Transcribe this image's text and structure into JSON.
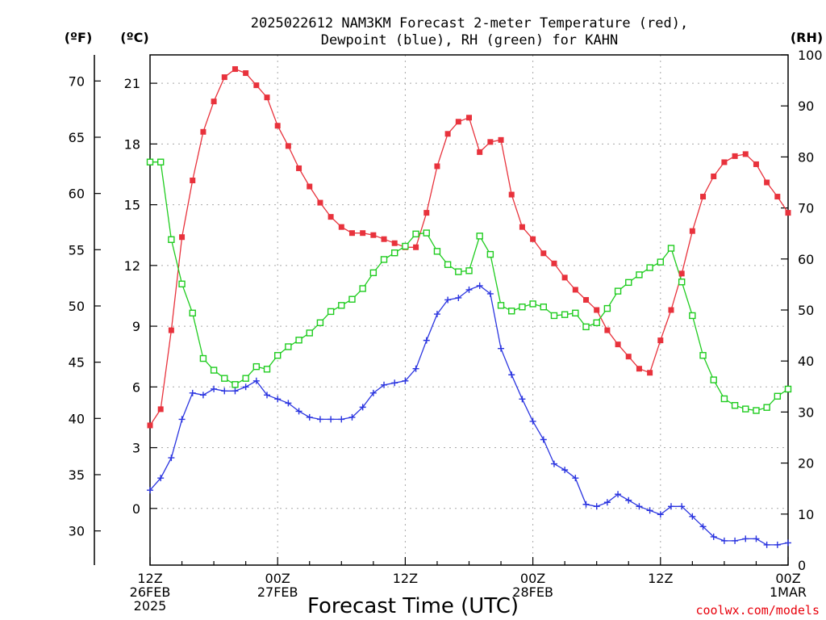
{
  "title_line1": "2025022612 NAM3KM Forecast 2-meter Temperature (red),",
  "title_line2": "Dewpoint (blue), RH (green) for KAHN",
  "units": {
    "f": "(ºF)",
    "c": "(ºC)",
    "rh": "(RH)"
  },
  "credit": "coolwx.com/models",
  "chart_data": {
    "type": "line",
    "title": "2025022612 NAM3KM Forecast 2-meter Temperature (red), Dewpoint (blue), RH (green) for KAHN",
    "xlabel": "Forecast Time (UTC)",
    "x": [
      0,
      1,
      2,
      3,
      4,
      5,
      6,
      7,
      8,
      9,
      10,
      11,
      12,
      13,
      14,
      15,
      16,
      17,
      18,
      19,
      20,
      21,
      22,
      23,
      24,
      25,
      26,
      27,
      28,
      29,
      30,
      31,
      32,
      33,
      34,
      35,
      36,
      37,
      38,
      39,
      40,
      41,
      42,
      43,
      44,
      45,
      46,
      47,
      48,
      49,
      50,
      51,
      52,
      53,
      54,
      55,
      56,
      57,
      58,
      59,
      60
    ],
    "x_ticks": [
      {
        "hour": 0,
        "label": [
          "12Z",
          "26FEB",
          "2025"
        ]
      },
      {
        "hour": 12,
        "label": [
          "00Z",
          "27FEB"
        ]
      },
      {
        "hour": 24,
        "label": [
          "12Z"
        ]
      },
      {
        "hour": 36,
        "label": [
          "00Z",
          "28FEB"
        ]
      },
      {
        "hour": 48,
        "label": [
          "12Z"
        ]
      },
      {
        "hour": 60,
        "label": [
          "00Z",
          "1MAR"
        ]
      }
    ],
    "left_axis_c": {
      "label": "(ºC)",
      "ticks": [
        0,
        3,
        6,
        9,
        12,
        15,
        18,
        21
      ],
      "range": [
        -2.8,
        22.4
      ]
    },
    "left_axis_f": {
      "label": "(ºF)",
      "ticks": [
        30,
        35,
        40,
        45,
        50,
        55,
        60,
        65,
        70
      ]
    },
    "right_axis_rh": {
      "label": "(RH)",
      "ticks": [
        0,
        10,
        20,
        30,
        40,
        50,
        60,
        70,
        80,
        90,
        100
      ],
      "range": [
        0,
        100
      ]
    },
    "grid": true,
    "series": [
      {
        "name": "Temperature",
        "color": "#e8323c",
        "marker": "filled-square",
        "axis": "c",
        "values": [
          4.1,
          4.9,
          8.8,
          13.4,
          16.2,
          18.6,
          20.1,
          21.3,
          21.7,
          21.5,
          20.9,
          20.3,
          18.9,
          17.9,
          16.8,
          15.9,
          15.1,
          14.4,
          13.9,
          13.6,
          13.6,
          13.5,
          13.3,
          13.1,
          12.9,
          12.9,
          14.6,
          16.9,
          18.5,
          19.1,
          19.3,
          17.6,
          18.1,
          18.2,
          15.5,
          13.9,
          13.3,
          12.6,
          12.1,
          11.4,
          10.8,
          10.3,
          9.8,
          8.8,
          8.1,
          7.5,
          6.9,
          6.7,
          8.3,
          9.8,
          11.6,
          13.7,
          15.4,
          16.4,
          17.1,
          17.4,
          17.5,
          17.0,
          16.1,
          15.4,
          14.6
        ]
      },
      {
        "name": "Dewpoint",
        "color": "#2b35e0",
        "marker": "plus",
        "axis": "c",
        "values": [
          0.9,
          1.5,
          2.5,
          4.4,
          5.7,
          5.6,
          5.9,
          5.8,
          5.8,
          6.0,
          6.3,
          5.6,
          5.4,
          5.2,
          4.8,
          4.5,
          4.4,
          4.4,
          4.4,
          4.5,
          5.0,
          5.7,
          6.1,
          6.2,
          6.3,
          6.9,
          8.3,
          9.6,
          10.3,
          10.4,
          10.8,
          11.0,
          10.6,
          7.9,
          6.6,
          5.4,
          4.3,
          3.4,
          2.2,
          1.9,
          1.5,
          0.2,
          0.1,
          0.3,
          0.7,
          0.4,
          0.1,
          -0.1,
          -0.3,
          0.1,
          0.1,
          -0.4,
          -0.9,
          -1.4,
          -1.6,
          -1.6,
          -1.5,
          -1.5,
          -1.8,
          -1.8,
          -1.7
        ]
      },
      {
        "name": "RH",
        "color": "#1fcc1f",
        "marker": "open-square",
        "axis": "rh",
        "values": [
          79,
          79,
          63.8,
          55.1,
          49.4,
          40.5,
          38.2,
          36.6,
          35.4,
          36.6,
          38.9,
          38.4,
          41.1,
          42.8,
          44.1,
          45.5,
          47.5,
          49.7,
          50.9,
          52.1,
          54.2,
          57.3,
          59.9,
          61.2,
          62.5,
          64.9,
          65.1,
          61.5,
          58.9,
          57.5,
          57.7,
          64.5,
          60.9,
          50.9,
          49.8,
          50.6,
          51.2,
          50.6,
          48.9,
          49.1,
          49.4,
          46.7,
          47.5,
          50.3,
          53.7,
          55.4,
          56.9,
          58.3,
          59.4,
          62.1,
          55.5,
          48.9,
          41.1,
          36.3,
          32.6,
          31.3,
          30.6,
          30.3,
          30.9,
          33.1,
          34.5
        ]
      }
    ]
  }
}
